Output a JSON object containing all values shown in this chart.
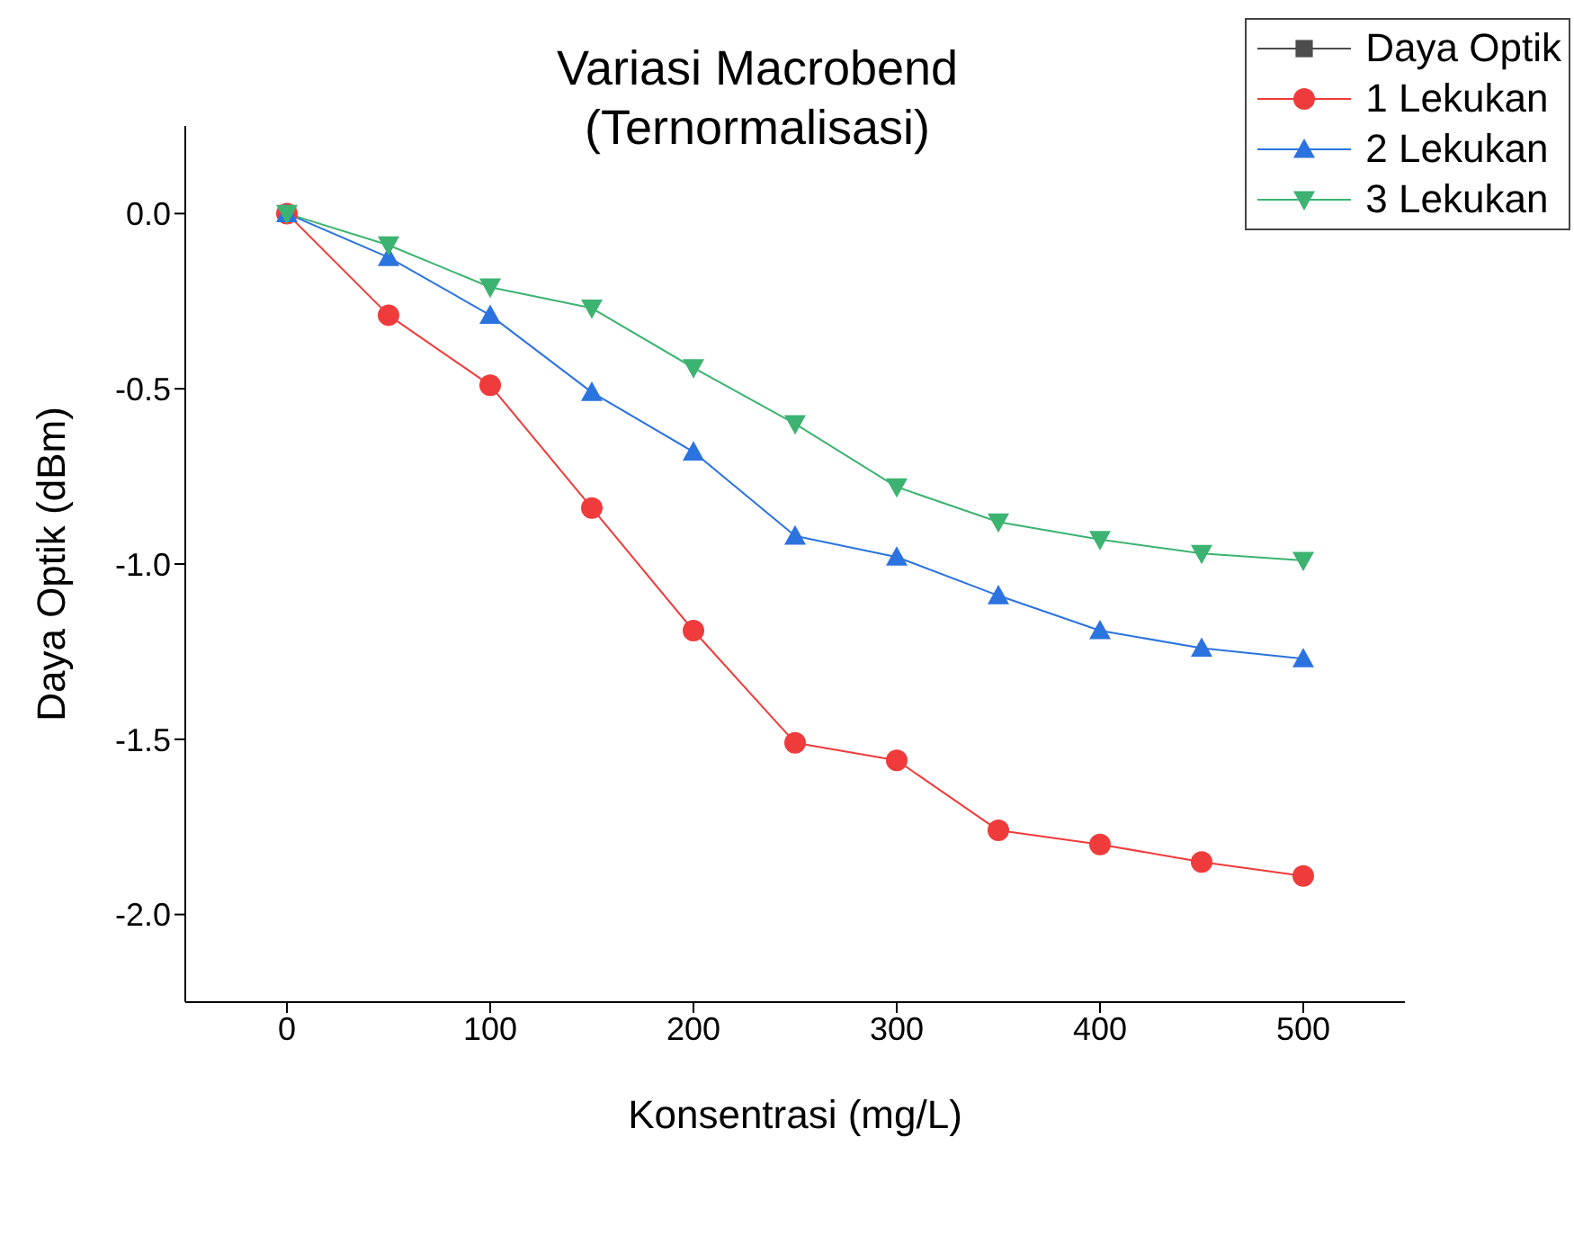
{
  "chart_data": {
    "type": "line",
    "title": "Variasi Macrobend\n(Ternormalisasi)",
    "xlabel": "Konsentrasi (mg/L)",
    "ylabel": "Daya Optik (dBm)",
    "x": [
      0,
      50,
      100,
      150,
      200,
      250,
      300,
      350,
      400,
      450,
      500
    ],
    "series": [
      {
        "name": "Daya Optik",
        "color": "#4d4d4d",
        "marker": "square",
        "values": [
          null,
          null,
          null,
          null,
          null,
          null,
          null,
          null,
          null,
          null,
          null
        ]
      },
      {
        "name": "1 Lekukan",
        "color": "#ef3b3b",
        "marker": "circle",
        "values": [
          0,
          -0.29,
          -0.49,
          -0.84,
          -1.19,
          -1.51,
          -1.56,
          -1.76,
          -1.8,
          -1.85,
          -1.89
        ]
      },
      {
        "name": "2 Lekukan",
        "color": "#2b73df",
        "marker": "triangle",
        "values": [
          0,
          -0.125,
          -0.29,
          -0.51,
          -0.68,
          -0.92,
          -0.98,
          -1.09,
          -1.19,
          -1.24,
          -1.27
        ]
      },
      {
        "name": "3 Lekukan",
        "color": "#3cb371",
        "marker": "triangle-down",
        "values": [
          0,
          -0.09,
          -0.21,
          -0.27,
          -0.44,
          -0.6,
          -0.78,
          -0.88,
          -0.93,
          -0.97,
          -0.99
        ]
      }
    ],
    "xlim": [
      -50,
      550
    ],
    "xticks": [
      0,
      100,
      200,
      300,
      400,
      500
    ],
    "ylim": [
      -2.25,
      0.25
    ],
    "yticks": [
      {
        "value": -2,
        "label": "-2.0"
      },
      {
        "value": -1.5,
        "label": "-1.5"
      },
      {
        "value": -1,
        "label": "-1.0"
      },
      {
        "value": -0.5,
        "label": "-0.5"
      },
      {
        "value": 0,
        "label": "0.0"
      }
    ],
    "grid": false,
    "legend": "top right",
    "line_style": "solid"
  }
}
